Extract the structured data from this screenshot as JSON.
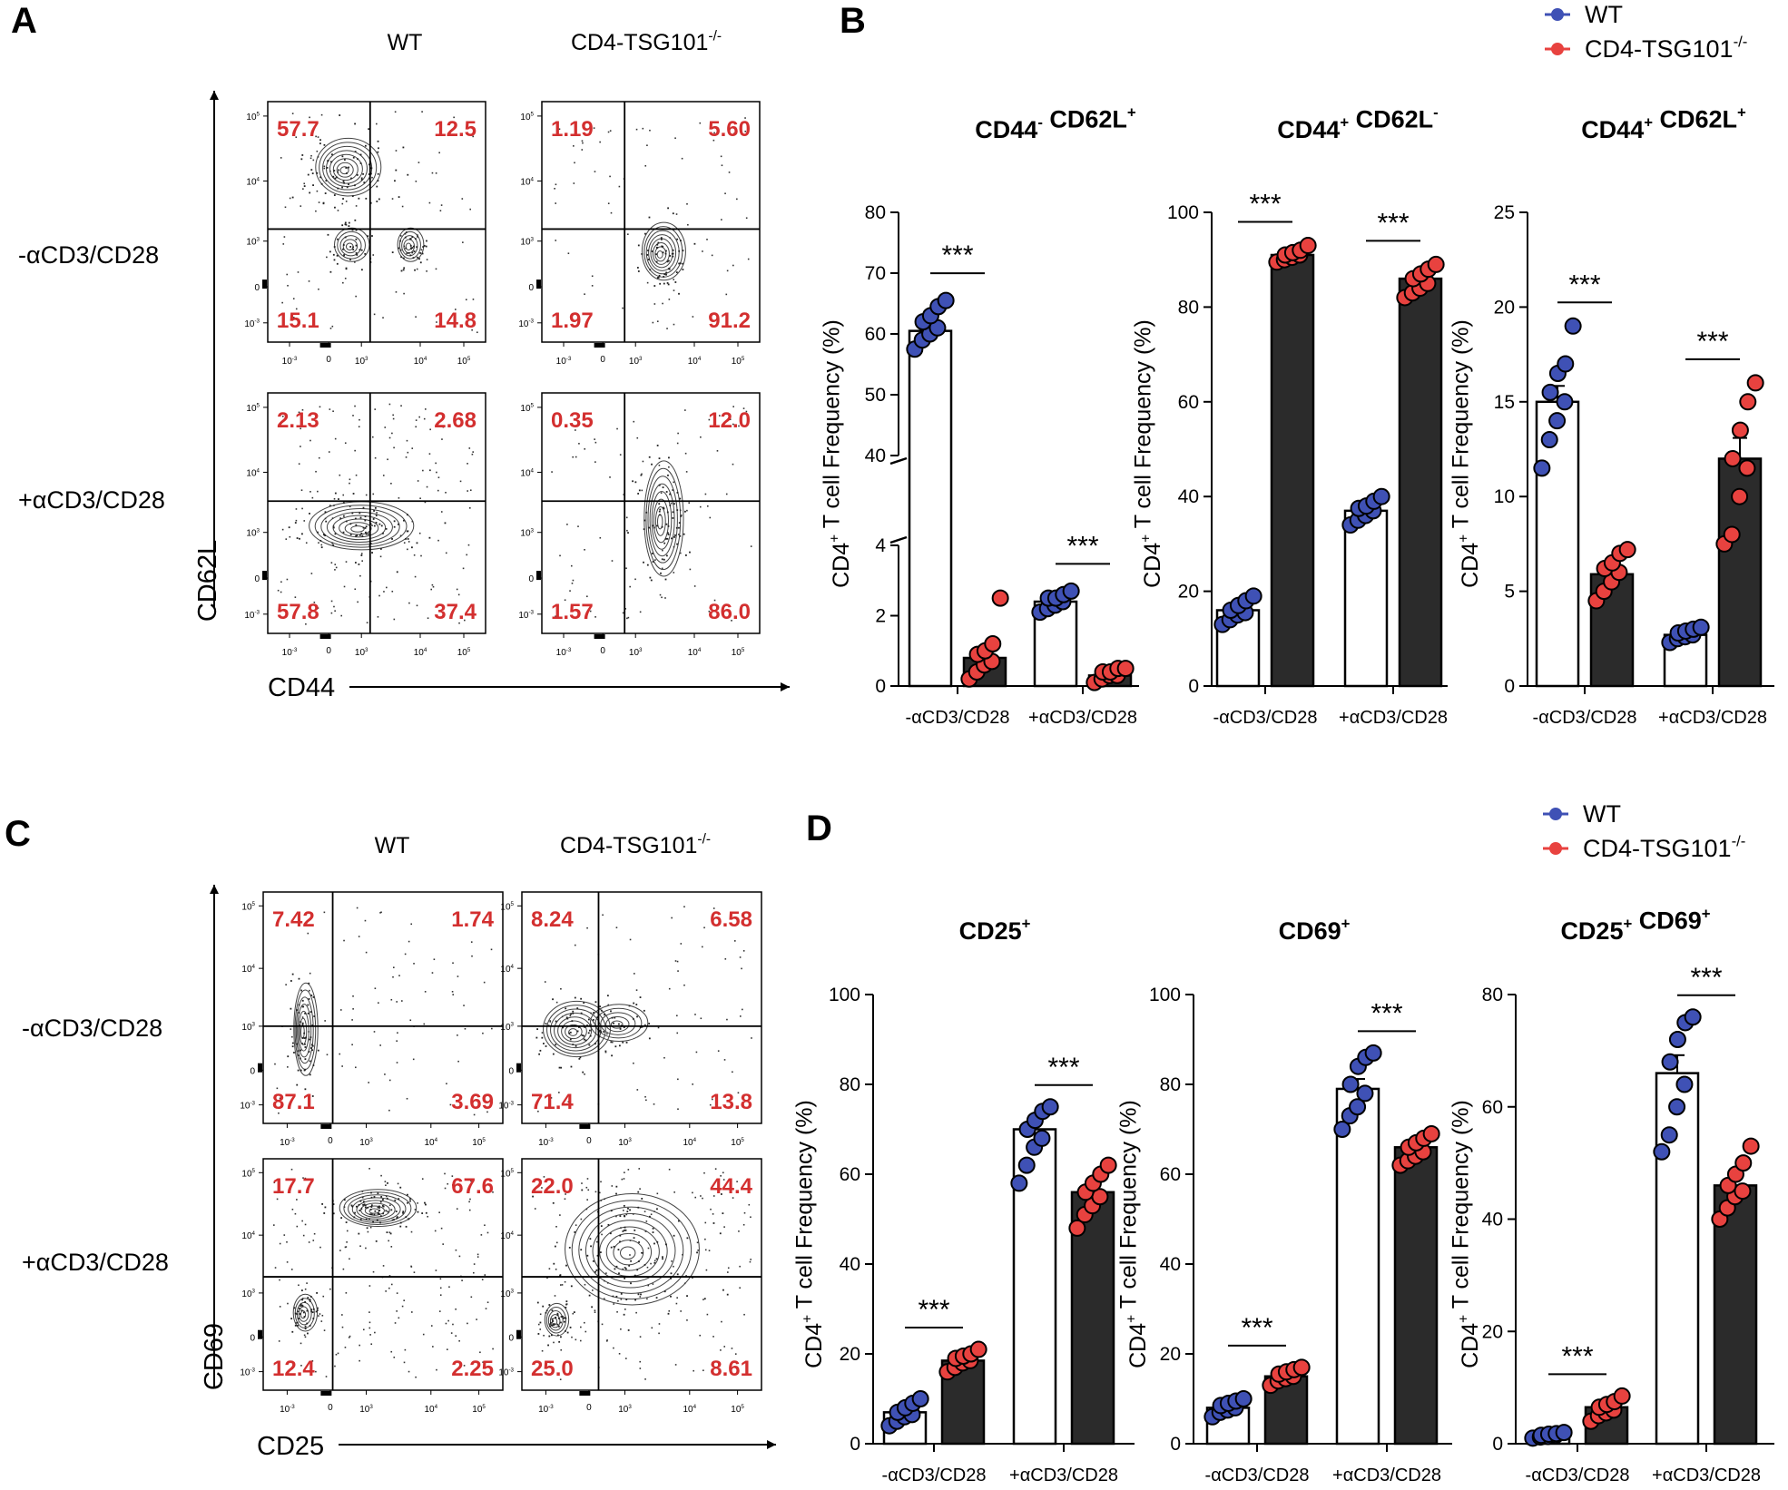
{
  "colors": {
    "wt": "#3f51b5",
    "ko": "#e8423f",
    "quadrant_text": "#d32f2f",
    "bar_ko": "#2b2b2b",
    "bar_wt": "#ffffff"
  },
  "panels": {
    "A": {
      "letter": "A",
      "col_labels": [
        "WT",
        "CD4-TSG101"
      ],
      "col_sup": [
        "",
        "-/-"
      ],
      "row_labels": [
        "-αCD3/CD28",
        "+αCD3/CD28"
      ],
      "y_axis": "CD62L",
      "x_axis": "CD44",
      "plots": [
        {
          "q": [
            "57.7",
            "12.5",
            "15.1",
            "14.8"
          ]
        },
        {
          "q": [
            "1.19",
            "5.60",
            "1.97",
            "91.2"
          ]
        },
        {
          "q": [
            "2.13",
            "2.68",
            "57.8",
            "37.4"
          ]
        },
        {
          "q": [
            "0.35",
            "12.0",
            "1.57",
            "86.0"
          ]
        }
      ]
    },
    "C": {
      "letter": "C",
      "col_labels": [
        "WT",
        "CD4-TSG101"
      ],
      "col_sup": [
        "",
        "-/-"
      ],
      "row_labels": [
        "-αCD3/CD28",
        "+αCD3/CD28"
      ],
      "y_axis": "CD69",
      "x_axis": "CD25",
      "plots": [
        {
          "q": [
            "7.42",
            "1.74",
            "87.1",
            "3.69"
          ]
        },
        {
          "q": [
            "8.24",
            "6.58",
            "71.4",
            "13.8"
          ]
        },
        {
          "q": [
            "17.7",
            "67.6",
            "12.4",
            "2.25"
          ]
        },
        {
          "q": [
            "22.0",
            "44.4",
            "25.0",
            "8.61"
          ]
        }
      ]
    },
    "B": {
      "letter": "B"
    },
    "D": {
      "letter": "D"
    }
  },
  "flow_ticks": {
    "top": "5",
    "mid": "4",
    "low": "3",
    "zero": "0",
    "neg": "-3",
    "base": "10"
  },
  "legend": {
    "wt": "WT",
    "ko": "CD4-TSG101",
    "ko_sup": "-/-"
  },
  "y_title": "CD4",
  "y_title_sup": "+",
  "y_title_rest": " T cell Frequency (%)",
  "stars": "***",
  "chart_data": [
    {
      "type": "bar",
      "id": "B1",
      "title": "CD44- CD62L+",
      "title_parts": [
        {
          "t": "CD44",
          "s": "-"
        },
        {
          "t": " CD62L",
          "s": "+"
        }
      ],
      "categories": [
        "-αCD3/CD28",
        "+αCD3/CD28"
      ],
      "series": [
        {
          "name": "WT",
          "values": [
            60.5,
            2.4
          ]
        },
        {
          "name": "CD4-TSG101-/-",
          "values": [
            0.8,
            0.3
          ]
        }
      ],
      "ylabel": "CD4+ T cell Frequency (%)",
      "broken_axis": true,
      "lower_range": [
        0,
        4
      ],
      "upper_range": [
        40,
        80
      ],
      "yticks_lower": [
        0,
        2,
        4
      ],
      "yticks_upper": [
        40,
        50,
        60,
        70,
        80
      ],
      "points": [
        [
          [
            57.5,
            59,
            60,
            61,
            62,
            63,
            64.5,
            65.5
          ],
          [
            2.1,
            2.2,
            2.3,
            2.4,
            2.5,
            2.5,
            2.6,
            2.7
          ]
        ],
        [
          [
            0.2,
            0.4,
            0.6,
            0.7,
            0.9,
            1.0,
            1.2,
            2.5
          ],
          [
            0.1,
            0.2,
            0.3,
            0.3,
            0.4,
            0.4,
            0.5,
            0.5
          ]
        ]
      ],
      "sig": [
        "***",
        "***"
      ]
    },
    {
      "type": "bar",
      "id": "B2",
      "title": "CD44+ CD62L-",
      "title_parts": [
        {
          "t": "CD44",
          "s": "+"
        },
        {
          "t": " CD62L",
          "s": "-"
        }
      ],
      "categories": [
        "-αCD3/CD28",
        "+αCD3/CD28"
      ],
      "series": [
        {
          "name": "WT",
          "values": [
            16,
            37
          ]
        },
        {
          "name": "CD4-TSG101-/-",
          "values": [
            91,
            86
          ]
        }
      ],
      "ylabel": "CD4+ T cell Frequency (%)",
      "ylim": [
        0,
        100
      ],
      "yticks": [
        0,
        20,
        40,
        60,
        80,
        100
      ],
      "points": [
        [
          [
            13,
            14,
            15,
            15.5,
            16,
            17,
            18,
            19
          ],
          [
            34,
            35,
            36,
            37,
            37.5,
            38,
            39,
            40
          ]
        ],
        [
          [
            89.5,
            90,
            90.5,
            91,
            91,
            91.5,
            92,
            93
          ],
          [
            82,
            83,
            84,
            85,
            86,
            87,
            88,
            89
          ]
        ]
      ],
      "sig": [
        "***",
        "***"
      ]
    },
    {
      "type": "bar",
      "id": "B3",
      "title": "CD44+ CD62L+",
      "title_parts": [
        {
          "t": "CD44",
          "s": "+"
        },
        {
          "t": " CD62L",
          "s": "+"
        }
      ],
      "categories": [
        "-αCD3/CD28",
        "+αCD3/CD28"
      ],
      "series": [
        {
          "name": "WT",
          "values": [
            15,
            2.7
          ]
        },
        {
          "name": "CD4-TSG101-/-",
          "values": [
            5.9,
            12
          ]
        }
      ],
      "ylabel": "CD4+ T cell Frequency (%)",
      "ylim": [
        0,
        25
      ],
      "yticks": [
        0,
        5,
        10,
        15,
        20,
        25
      ],
      "points": [
        [
          [
            11.5,
            13,
            14,
            15,
            15.5,
            16.5,
            17,
            19
          ],
          [
            2.3,
            2.5,
            2.6,
            2.7,
            2.8,
            2.9,
            3.0,
            3.1
          ]
        ],
        [
          [
            4.5,
            5,
            5.5,
            6,
            6.2,
            6.5,
            7,
            7.2
          ],
          [
            7.5,
            8,
            10,
            11.5,
            12,
            13.5,
            15,
            16
          ]
        ]
      ],
      "sig": [
        "***",
        "***"
      ]
    },
    {
      "type": "bar",
      "id": "D1",
      "title": "CD25+",
      "title_parts": [
        {
          "t": "CD25",
          "s": "+"
        }
      ],
      "categories": [
        "-αCD3/CD28",
        "+αCD3/CD28"
      ],
      "series": [
        {
          "name": "WT",
          "values": [
            7,
            70
          ]
        },
        {
          "name": "CD4-TSG101-/-",
          "values": [
            18.5,
            56
          ]
        }
      ],
      "ylabel": "CD4+ T cell Frequency (%)",
      "ylim": [
        0,
        100
      ],
      "yticks": [
        0,
        20,
        40,
        60,
        80,
        100
      ],
      "points": [
        [
          [
            4,
            5,
            6,
            6.5,
            7,
            8,
            9,
            10
          ],
          [
            58,
            62,
            66,
            68,
            70,
            72,
            74,
            75
          ]
        ],
        [
          [
            16,
            17,
            18,
            18.5,
            19,
            19.5,
            20,
            21
          ],
          [
            48,
            51,
            53,
            55,
            56,
            58,
            60,
            62
          ]
        ]
      ],
      "sig": [
        "***",
        "***"
      ]
    },
    {
      "type": "bar",
      "id": "D2",
      "title": "CD69+",
      "title_parts": [
        {
          "t": "CD69",
          "s": "+"
        }
      ],
      "categories": [
        "-αCD3/CD28",
        "+αCD3/CD28"
      ],
      "series": [
        {
          "name": "WT",
          "values": [
            8,
            79
          ]
        },
        {
          "name": "CD4-TSG101-/-",
          "values": [
            15,
            66
          ]
        }
      ],
      "ylabel": "CD4+ T cell Frequency (%)",
      "ylim": [
        0,
        100
      ],
      "yticks": [
        0,
        20,
        40,
        60,
        80,
        100
      ],
      "points": [
        [
          [
            6,
            7,
            7.5,
            8,
            8.5,
            9,
            9.5,
            10
          ],
          [
            70,
            73,
            75,
            78,
            80,
            84,
            86,
            87
          ]
        ],
        [
          [
            13,
            14,
            14.5,
            15,
            15.5,
            16,
            16.5,
            17
          ],
          [
            62,
            63,
            64,
            65,
            66,
            67,
            68,
            69
          ]
        ]
      ],
      "sig": [
        "***",
        "***"
      ]
    },
    {
      "type": "bar",
      "id": "D3",
      "title": "CD25+ CD69+",
      "title_parts": [
        {
          "t": "CD25",
          "s": "+"
        },
        {
          "t": " CD69",
          "s": "+"
        }
      ],
      "categories": [
        "-αCD3/CD28",
        "+αCD3/CD28"
      ],
      "series": [
        {
          "name": "WT",
          "values": [
            1.5,
            66
          ]
        },
        {
          "name": "CD4-TSG101-/-",
          "values": [
            6.5,
            46
          ]
        }
      ],
      "ylabel": "CD4+ T cell Frequency (%)",
      "ylim": [
        0,
        80
      ],
      "yticks": [
        0,
        20,
        40,
        60,
        80
      ],
      "points": [
        [
          [
            1,
            1.2,
            1.3,
            1.5,
            1.5,
            1.7,
            1.8,
            2
          ],
          [
            52,
            55,
            60,
            64,
            68,
            72,
            75,
            76
          ]
        ],
        [
          [
            4,
            5,
            5.5,
            6,
            6.5,
            7,
            7.5,
            8.5
          ],
          [
            40,
            42,
            44,
            45,
            46,
            48,
            50,
            53
          ]
        ]
      ],
      "sig": [
        "***",
        "***"
      ]
    }
  ]
}
